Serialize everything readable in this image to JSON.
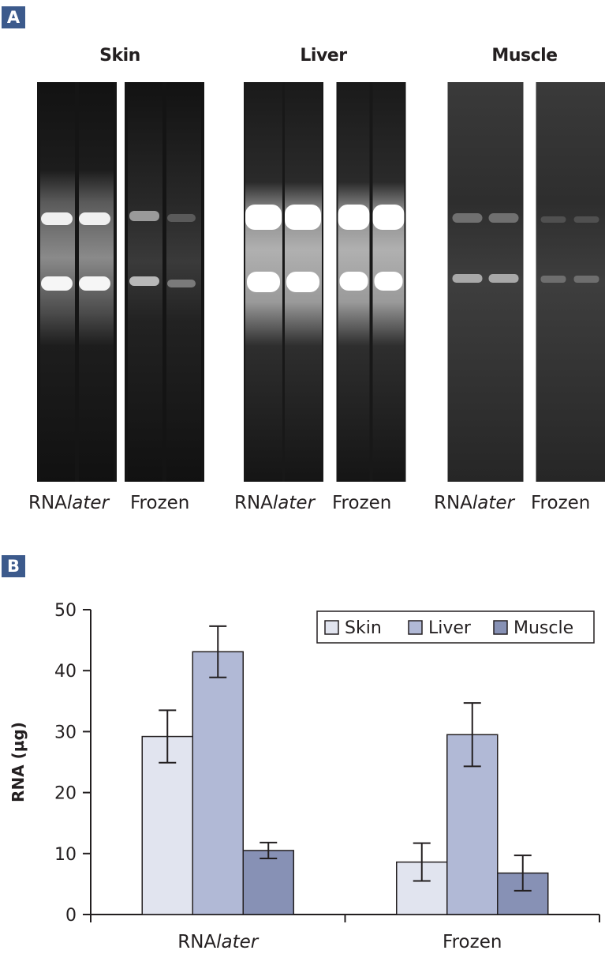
{
  "panel_a": {
    "badge": "A",
    "tissues": [
      {
        "name": "Skin",
        "lanes": [
          {
            "prefix": "RNA",
            "italic": "later"
          },
          {
            "prefix": "Frozen",
            "italic": ""
          }
        ]
      },
      {
        "name": "Liver",
        "lanes": [
          {
            "prefix": "RNA",
            "italic": "later"
          },
          {
            "prefix": "Frozen",
            "italic": ""
          }
        ]
      },
      {
        "name": "Muscle",
        "lanes": [
          {
            "prefix": "RNA",
            "italic": "later"
          },
          {
            "prefix": "Frozen",
            "italic": ""
          }
        ]
      }
    ]
  },
  "panel_b": {
    "badge": "B"
  },
  "chart_data": {
    "type": "bar",
    "categories": [
      {
        "prefix": "RNA",
        "italic": "later"
      },
      {
        "prefix": "Frozen",
        "italic": ""
      }
    ],
    "series": [
      {
        "name": "Skin",
        "color": "#e1e4ef",
        "values": [
          29.2,
          8.6
        ],
        "errors": [
          4.3,
          3.1
        ]
      },
      {
        "name": "Liver",
        "color": "#b1b9d6",
        "values": [
          43.1,
          29.5
        ],
        "errors": [
          4.2,
          5.2
        ]
      },
      {
        "name": "Muscle",
        "color": "#8791b5",
        "values": [
          10.5,
          6.8
        ],
        "errors": [
          1.3,
          2.9
        ]
      }
    ],
    "ylabel": "RNA (µg)",
    "ylim": [
      0,
      50
    ],
    "yticks": [
      0,
      10,
      20,
      30,
      40,
      50
    ],
    "legend": "top-right",
    "grid": false
  }
}
